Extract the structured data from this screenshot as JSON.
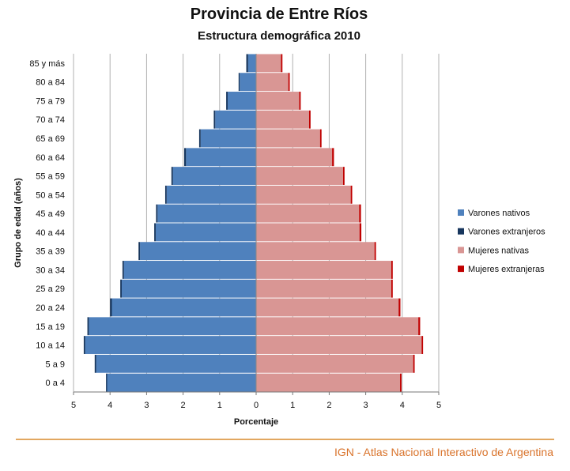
{
  "footer": {
    "text": "IGN - Atlas Nacional Interactivo de Argentina",
    "line_color": "#d98a2b",
    "text_color": "#d9732b"
  },
  "chart_data": {
    "type": "bar",
    "orientation": "horizontal",
    "subtype": "population-pyramid",
    "title": "Provincia de Entre Ríos",
    "subtitle": "Estructura demográfica 2010",
    "xlabel": "Porcentaje",
    "ylabel": "Grupo de edad (años)",
    "xlim": [
      -5,
      5
    ],
    "xticks": [
      -5,
      -4,
      -3,
      -2,
      -1,
      0,
      1,
      2,
      3,
      4,
      5
    ],
    "xtick_labels": [
      "5",
      "4",
      "3",
      "2",
      "1",
      "0",
      "1",
      "2",
      "3",
      "4",
      "5"
    ],
    "grid": "vertical",
    "legend_position": "right",
    "categories": [
      "0 a 4",
      "5 a 9",
      "10 a 14",
      "15 a 19",
      "20 a 24",
      "25 a 29",
      "30 a 34",
      "35 a 39",
      "40 a 44",
      "45 a 49",
      "50 a 54",
      "55 a 59",
      "60 a 64",
      "65 a 69",
      "70 a 74",
      "75 a 79",
      "80 a 84",
      "85 y más"
    ],
    "series": [
      {
        "name": "Varones nativos",
        "side": "left",
        "color": "#4f81bd",
        "stack": "male",
        "values": [
          4.08,
          4.38,
          4.68,
          4.58,
          3.95,
          3.68,
          3.62,
          3.18,
          2.75,
          2.7,
          2.45,
          2.28,
          1.92,
          1.52,
          1.12,
          0.78,
          0.45,
          0.22
        ]
      },
      {
        "name": "Varones extranjeros",
        "side": "left",
        "color": "#17365d",
        "stack": "male",
        "values": [
          0.03,
          0.04,
          0.04,
          0.04,
          0.05,
          0.04,
          0.04,
          0.04,
          0.04,
          0.04,
          0.04,
          0.04,
          0.05,
          0.04,
          0.04,
          0.04,
          0.03,
          0.05
        ]
      },
      {
        "name": "Mujeres nativas",
        "side": "right",
        "color": "#d99694",
        "stack": "female",
        "values": [
          3.94,
          4.3,
          4.53,
          4.44,
          3.9,
          3.7,
          3.7,
          3.24,
          2.83,
          2.82,
          2.59,
          2.38,
          2.08,
          1.75,
          1.45,
          1.18,
          0.88,
          0.68
        ]
      },
      {
        "name": "Mujeres extranjeras",
        "side": "right",
        "color": "#c00000",
        "stack": "female",
        "values": [
          0.04,
          0.04,
          0.04,
          0.05,
          0.05,
          0.04,
          0.04,
          0.04,
          0.05,
          0.05,
          0.04,
          0.04,
          0.05,
          0.04,
          0.04,
          0.04,
          0.04,
          0.04
        ]
      }
    ]
  }
}
